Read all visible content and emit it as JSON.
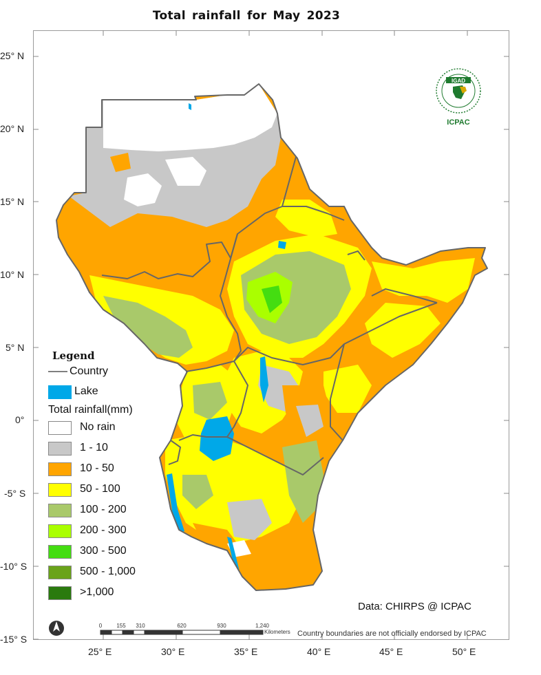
{
  "title": "Total rainfall  for  May  2023",
  "lat_labels": [
    "25° N",
    "20° N",
    "15° N",
    "10° N",
    "5° N",
    "0°",
    "-5° S",
    "-10° S",
    "-15° S"
  ],
  "lon_labels": [
    "25° E",
    "30° E",
    "35° E",
    "40° E",
    "45° E",
    "50° E"
  ],
  "legend": {
    "title": "Legend",
    "country_label": "Country",
    "lake_label": "Lake",
    "rain_title": "Total rainfall(mm)",
    "classes": [
      {
        "label": "No rain",
        "color": "#ffffff"
      },
      {
        "label": "1 - 10",
        "color": "#c8c8c8"
      },
      {
        "label": "10 - 50",
        "color": "#ffa500"
      },
      {
        "label": "50 - 100",
        "color": "#ffff00"
      },
      {
        "label": "100 - 200",
        "color": "#a9c96a"
      },
      {
        "label": "200 - 300",
        "color": "#aaff00"
      },
      {
        "label": "300 - 500",
        "color": "#44dd11"
      },
      {
        "label": "500 - 1,000",
        "color": "#6aa31a"
      },
      {
        "label": ">1,000",
        "color": "#2a7a0e"
      }
    ],
    "lake_color": "#00a8e8"
  },
  "credit": "Data: CHIRPS @ ICPAC",
  "disclaimer": "Country boundaries are not officially endorsed by ICPAC",
  "scale_bar": {
    "ticks": [
      "0",
      "155",
      "310",
      "620",
      "930",
      "1,240"
    ],
    "unit": "Kilometers"
  },
  "logo": {
    "top_text": "IGAD",
    "bottom_text": "ICPAC"
  },
  "icons": {
    "north_arrow": "north-arrow-icon"
  }
}
